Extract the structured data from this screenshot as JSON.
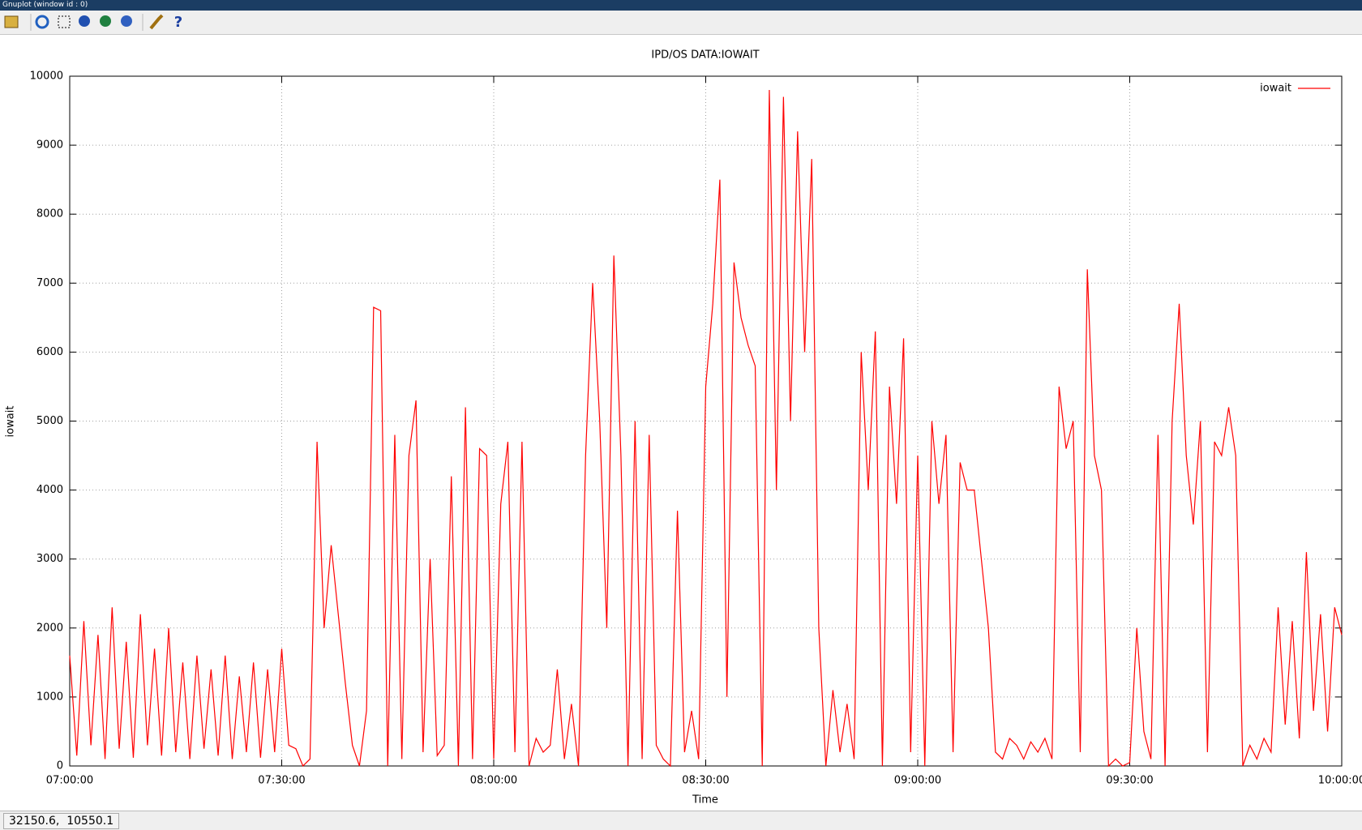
{
  "window": {
    "title": "Gnuplot (window id : 0)"
  },
  "status_bar": {
    "coords": "32150.6,  10550.1"
  },
  "chart_data": {
    "type": "line",
    "title": "IPD/OS DATA:IOWAIT",
    "x_label": "Time",
    "y_label": "iowait",
    "x": [
      "07:00:00",
      "07:01:00",
      "07:02:00",
      "07:03:00",
      "07:04:00",
      "07:05:00",
      "07:06:00",
      "07:07:00",
      "07:08:00",
      "07:09:00",
      "07:10:00",
      "07:11:00",
      "07:12:00",
      "07:13:00",
      "07:14:00",
      "07:15:00",
      "07:16:00",
      "07:17:00",
      "07:18:00",
      "07:19:00",
      "07:20:00",
      "07:21:00",
      "07:22:00",
      "07:23:00",
      "07:24:00",
      "07:25:00",
      "07:26:00",
      "07:27:00",
      "07:28:00",
      "07:29:00",
      "07:30:00",
      "07:31:00",
      "07:32:00",
      "07:33:00",
      "07:34:00",
      "07:35:00",
      "07:36:00",
      "07:37:00",
      "07:38:00",
      "07:39:00",
      "07:40:00",
      "07:41:00",
      "07:42:00",
      "07:43:00",
      "07:44:00",
      "07:45:00",
      "07:46:00",
      "07:47:00",
      "07:48:00",
      "07:49:00",
      "07:50:00",
      "07:51:00",
      "07:52:00",
      "07:53:00",
      "07:54:00",
      "07:55:00",
      "07:56:00",
      "07:57:00",
      "07:58:00",
      "07:59:00",
      "08:00:00",
      "08:01:00",
      "08:02:00",
      "08:03:00",
      "08:04:00",
      "08:05:00",
      "08:06:00",
      "08:07:00",
      "08:08:00",
      "08:09:00",
      "08:10:00",
      "08:11:00",
      "08:12:00",
      "08:13:00",
      "08:14:00",
      "08:15:00",
      "08:16:00",
      "08:17:00",
      "08:18:00",
      "08:19:00",
      "08:20:00",
      "08:21:00",
      "08:22:00",
      "08:23:00",
      "08:24:00",
      "08:25:00",
      "08:26:00",
      "08:27:00",
      "08:28:00",
      "08:29:00",
      "08:30:00",
      "08:31:00",
      "08:32:00",
      "08:33:00",
      "08:34:00",
      "08:35:00",
      "08:36:00",
      "08:37:00",
      "08:38:00",
      "08:39:00",
      "08:40:00",
      "08:41:00",
      "08:42:00",
      "08:43:00",
      "08:44:00",
      "08:45:00",
      "08:46:00",
      "08:47:00",
      "08:48:00",
      "08:49:00",
      "08:50:00",
      "08:51:00",
      "08:52:00",
      "08:53:00",
      "08:54:00",
      "08:55:00",
      "08:56:00",
      "08:57:00",
      "08:58:00",
      "08:59:00",
      "09:00:00",
      "09:01:00",
      "09:02:00",
      "09:03:00",
      "09:04:00",
      "09:05:00",
      "09:06:00",
      "09:07:00",
      "09:08:00",
      "09:09:00",
      "09:10:00",
      "09:11:00",
      "09:12:00",
      "09:13:00",
      "09:14:00",
      "09:15:00",
      "09:16:00",
      "09:17:00",
      "09:18:00",
      "09:19:00",
      "09:20:00",
      "09:21:00",
      "09:22:00",
      "09:23:00",
      "09:24:00",
      "09:25:00",
      "09:26:00",
      "09:27:00",
      "09:28:00",
      "09:29:00",
      "09:30:00",
      "09:31:00",
      "09:32:00",
      "09:33:00",
      "09:34:00",
      "09:35:00",
      "09:36:00",
      "09:37:00",
      "09:38:00",
      "09:39:00",
      "09:40:00",
      "09:41:00",
      "09:42:00",
      "09:43:00",
      "09:44:00",
      "09:45:00",
      "09:46:00",
      "09:47:00",
      "09:48:00",
      "09:49:00",
      "09:50:00",
      "09:51:00",
      "09:52:00",
      "09:53:00",
      "09:54:00",
      "09:55:00",
      "09:56:00",
      "09:57:00",
      "09:58:00",
      "09:59:00",
      "10:00:00"
    ],
    "series": [
      {
        "name": "iowait",
        "color": "#ff0000",
        "values": [
          1600,
          150,
          2100,
          300,
          1900,
          100,
          2300,
          250,
          1800,
          120,
          2200,
          300,
          1700,
          150,
          2000,
          200,
          1500,
          100,
          1600,
          250,
          1400,
          150,
          1600,
          100,
          1300,
          200,
          1500,
          120,
          1400,
          200,
          1700,
          300,
          250,
          0,
          100,
          4700,
          2000,
          3200,
          2200,
          1200,
          300,
          0,
          800,
          6650,
          6600,
          0,
          4800,
          100,
          4500,
          5300,
          200,
          3000,
          150,
          300,
          4200,
          0,
          5200,
          100,
          4600,
          4500,
          100,
          3800,
          4700,
          200,
          4700,
          0,
          400,
          200,
          300,
          1400,
          100,
          900,
          0,
          4500,
          7000,
          5000,
          2000,
          7400,
          4500,
          0,
          5000,
          100,
          4800,
          300,
          100,
          0,
          3700,
          200,
          800,
          100,
          5500,
          6700,
          8500,
          1000,
          7300,
          6500,
          6100,
          5800,
          0,
          9800,
          4000,
          9700,
          5000,
          9200,
          6000,
          8800,
          2000,
          0,
          1100,
          200,
          900,
          100,
          6000,
          4000,
          6300,
          0,
          5500,
          3800,
          6200,
          200,
          4500,
          0,
          5000,
          3800,
          4800,
          200,
          4400,
          4000,
          4000,
          3000,
          2000,
          200,
          100,
          400,
          300,
          100,
          350,
          200,
          400,
          100,
          5500,
          4600,
          5000,
          200,
          7200,
          4500,
          4000,
          0,
          100,
          0,
          50,
          2000,
          500,
          100,
          4800,
          0,
          5000,
          6700,
          4500,
          3500,
          5000,
          200,
          4700,
          4500,
          5200,
          4500,
          0,
          300,
          100,
          400,
          200,
          2300,
          600,
          2100,
          400,
          3100,
          800,
          2200,
          500,
          2300,
          1900
        ]
      }
    ],
    "xlim": [
      "07:00:00",
      "10:00:00"
    ],
    "xticks": [
      "07:00:00",
      "07:30:00",
      "08:00:00",
      "08:30:00",
      "09:00:00",
      "09:30:00",
      "10:00:00"
    ],
    "ylim": [
      0,
      10000
    ],
    "yticks": [
      0,
      1000,
      2000,
      3000,
      4000,
      5000,
      6000,
      7000,
      8000,
      9000,
      10000
    ],
    "grid": true,
    "legend": "top-right"
  }
}
